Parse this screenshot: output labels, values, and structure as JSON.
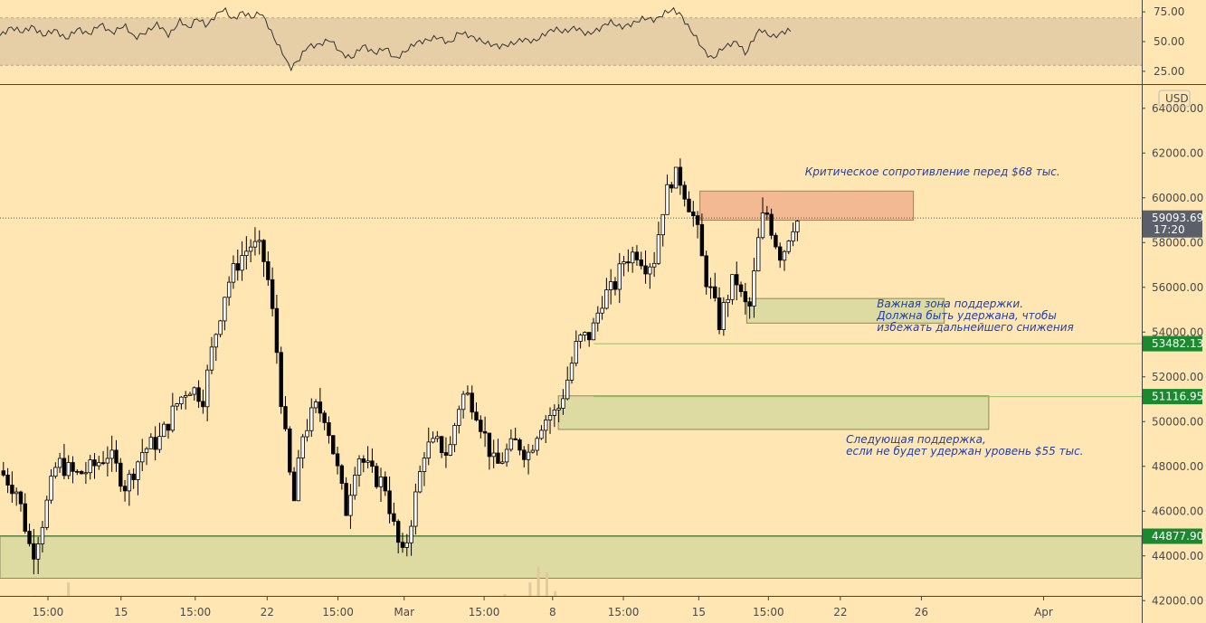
{
  "chart_data": {
    "type": "candlestick",
    "instrument_currency": "USD",
    "colors": {
      "background": "#ffe6b3",
      "candle_up": "#ffffff",
      "candle_down": "#000000",
      "rsi_band": "#e6cfa6",
      "resistance_zone": "#f2b48f",
      "support_zone": "#d9d8a0",
      "support_line": "#8fbf6a",
      "label_green": "#1b8a2e",
      "label_dark": "#5b5f6a",
      "annotation_text": "#1f3fae"
    },
    "price_axis": {
      "ylim": [
        41000,
        65000
      ],
      "ticks": [
        "64000.00",
        "62000.00",
        "60000.00",
        "58000.00",
        "56000.00",
        "54000.00",
        "52000.00",
        "50000.00",
        "48000.00",
        "46000.00",
        "44000.00",
        "42000.00"
      ],
      "tick_values": [
        64000,
        62000,
        60000,
        58000,
        56000,
        54000,
        52000,
        50000,
        48000,
        46000,
        44000,
        42000
      ]
    },
    "rsi_axis": {
      "ylim": [
        15,
        85
      ],
      "ticks": [
        "75.00",
        "50.00",
        "25.00"
      ],
      "tick_values": [
        75,
        50,
        25
      ],
      "band": [
        30,
        70
      ]
    },
    "time_axis": {
      "xlim": [
        0,
        100
      ],
      "labels": [
        "15:00",
        "15",
        "15:00",
        "22",
        "15:00",
        "Mar",
        "15:00",
        "8",
        "15:00",
        "15",
        "15:00",
        "22",
        "26",
        "Apr"
      ],
      "positions": [
        4.2,
        10.6,
        17.1,
        23.4,
        29.6,
        35.4,
        42.4,
        48.4,
        54.6,
        61.2,
        67.3,
        73.6,
        80.7,
        91.4
      ]
    },
    "current_price": {
      "label": "59093.69",
      "value": 59093.69,
      "time_label": "17:20"
    },
    "level_labels": [
      {
        "label": "53482.13",
        "value": 53482.13
      },
      {
        "label": "51116.95",
        "value": 51116.95
      },
      {
        "label": "44877.90",
        "value": 44877.9
      }
    ],
    "zones": [
      {
        "kind": "resistance",
        "x": [
          61.3,
          80.0
        ],
        "price": [
          59000,
          60300
        ]
      },
      {
        "kind": "support",
        "x": [
          65.4,
          82.7
        ],
        "price": [
          54400,
          55500
        ]
      },
      {
        "kind": "support",
        "x": [
          48.9,
          86.6
        ],
        "price": [
          49650,
          51150
        ]
      },
      {
        "kind": "support",
        "x": [
          0,
          100
        ],
        "price": [
          43000,
          44900
        ]
      }
    ],
    "annotations": [
      {
        "lines": [
          "Критическое сопротивление перед $68 тыс."
        ],
        "x": 70.5,
        "price": 61000
      },
      {
        "lines": [
          "Важная зона поддержки.",
          "Должна быть удержана, чтобы",
          "избежать дальнейшего снижения"
        ],
        "x": 76.8,
        "price": 55100
      },
      {
        "lines": [
          "Следующая поддержка,",
          "если не будет удержан уровень $55 тыс."
        ],
        "x": 74.1,
        "price": 49050
      }
    ],
    "price_path": [
      [
        0,
        47800
      ],
      [
        1.5,
        46900
      ],
      [
        2.8,
        44000
      ],
      [
        3.6,
        45300
      ],
      [
        5,
        48200
      ],
      [
        6.6,
        47600
      ],
      [
        8,
        47900
      ],
      [
        9.5,
        48600
      ],
      [
        11,
        47100
      ],
      [
        12.5,
        48700
      ],
      [
        14,
        49200
      ],
      [
        15.5,
        50800
      ],
      [
        16.5,
        51600
      ],
      [
        17.8,
        51100
      ],
      [
        18.6,
        53300
      ],
      [
        19.8,
        56000
      ],
      [
        21,
        57300
      ],
      [
        22,
        57900
      ],
      [
        22.9,
        57600
      ],
      [
        23.4,
        56600
      ],
      [
        24.1,
        53900
      ],
      [
        24.8,
        50100
      ],
      [
        25.7,
        46200
      ],
      [
        26.5,
        49400
      ],
      [
        27.6,
        50600
      ],
      [
        28.5,
        50300
      ],
      [
        29.4,
        48200
      ],
      [
        30.3,
        46000
      ],
      [
        31.3,
        48600
      ],
      [
        32.6,
        47600
      ],
      [
        33.7,
        47200
      ],
      [
        34.7,
        44800
      ],
      [
        35.3,
        43900
      ],
      [
        36.2,
        46100
      ],
      [
        37.2,
        48800
      ],
      [
        38.4,
        49000
      ],
      [
        39.3,
        48500
      ],
      [
        40.1,
        50600
      ],
      [
        40.7,
        51300
      ],
      [
        41.6,
        50700
      ],
      [
        42.5,
        49300
      ],
      [
        43.4,
        47900
      ],
      [
        44.3,
        48600
      ],
      [
        45.3,
        49100
      ],
      [
        46.2,
        48500
      ],
      [
        47.3,
        49900
      ],
      [
        48.1,
        50300
      ],
      [
        48.8,
        50400
      ],
      [
        49.6,
        51700
      ],
      [
        50.6,
        53600
      ],
      [
        51.8,
        53900
      ],
      [
        52.8,
        55600
      ],
      [
        53.7,
        55900
      ],
      [
        54.7,
        57300
      ],
      [
        55.8,
        57600
      ],
      [
        56.6,
        57000
      ],
      [
        57.3,
        57300
      ],
      [
        58.1,
        59700
      ],
      [
        58.9,
        61000
      ],
      [
        59.6,
        60800
      ],
      [
        60.3,
        59800
      ],
      [
        61,
        58700
      ],
      [
        61.7,
        56600
      ],
      [
        62.3,
        55700
      ],
      [
        63,
        54400
      ],
      [
        63.7,
        55600
      ],
      [
        64.4,
        56500
      ],
      [
        65.1,
        55200
      ],
      [
        65.7,
        55100
      ],
      [
        66.4,
        58000
      ],
      [
        67,
        59600
      ],
      [
        67.7,
        58400
      ],
      [
        68.3,
        57500
      ],
      [
        68.8,
        57800
      ],
      [
        69.3,
        58800
      ],
      [
        70,
        59000
      ]
    ],
    "rsi_path": [
      [
        0,
        55
      ],
      [
        1,
        62
      ],
      [
        2,
        58
      ],
      [
        2.8,
        63
      ],
      [
        3.8,
        55
      ],
      [
        4.8,
        60
      ],
      [
        5.8,
        52
      ],
      [
        6.8,
        61
      ],
      [
        7.8,
        56
      ],
      [
        8.8,
        65
      ],
      [
        9.8,
        57
      ],
      [
        10.9,
        64
      ],
      [
        11.8,
        53
      ],
      [
        12.8,
        58
      ],
      [
        13.8,
        65
      ],
      [
        14.8,
        55
      ],
      [
        15.8,
        68
      ],
      [
        16.5,
        61
      ],
      [
        17.3,
        70
      ],
      [
        18.1,
        63
      ],
      [
        18.8,
        71
      ],
      [
        19.6,
        78
      ],
      [
        20.4,
        68
      ],
      [
        21.2,
        75
      ],
      [
        22.1,
        70
      ],
      [
        22.8,
        75
      ],
      [
        23.3,
        67
      ],
      [
        24,
        53
      ],
      [
        24.8,
        40
      ],
      [
        25.4,
        27
      ],
      [
        26.2,
        35
      ],
      [
        26.9,
        46
      ],
      [
        27.9,
        47
      ],
      [
        28.9,
        52
      ],
      [
        29.9,
        40
      ],
      [
        30.8,
        36
      ],
      [
        31.8,
        47
      ],
      [
        32.8,
        40
      ],
      [
        33.8,
        45
      ],
      [
        34.6,
        35
      ],
      [
        35.4,
        41
      ],
      [
        36.4,
        49
      ],
      [
        37.4,
        51
      ],
      [
        38.4,
        54
      ],
      [
        39.4,
        48
      ],
      [
        40.2,
        58
      ],
      [
        40.8,
        56
      ],
      [
        41.8,
        52
      ],
      [
        42.8,
        48
      ],
      [
        43.8,
        46
      ],
      [
        44.8,
        48
      ],
      [
        45.8,
        52
      ],
      [
        46.8,
        50
      ],
      [
        47.8,
        57
      ],
      [
        48.6,
        61
      ],
      [
        49.4,
        58
      ],
      [
        50.4,
        62
      ],
      [
        51.4,
        56
      ],
      [
        52.4,
        60
      ],
      [
        53.4,
        67
      ],
      [
        54.4,
        62
      ],
      [
        55.4,
        65
      ],
      [
        56.4,
        70
      ],
      [
        57.4,
        68
      ],
      [
        58.2,
        74
      ],
      [
        58.9,
        77
      ],
      [
        59.6,
        73
      ],
      [
        60.3,
        62
      ],
      [
        61,
        53
      ],
      [
        61.6,
        43
      ],
      [
        62.4,
        35
      ],
      [
        63.2,
        44
      ],
      [
        64,
        48
      ],
      [
        64.6,
        50
      ],
      [
        65.3,
        39
      ],
      [
        65.9,
        51
      ],
      [
        66.6,
        61
      ],
      [
        67.2,
        56
      ],
      [
        67.8,
        54
      ],
      [
        68.4,
        57
      ],
      [
        69.1,
        60
      ],
      [
        69.4,
        57
      ]
    ],
    "volume": [
      17,
      15,
      13,
      12,
      19,
      14,
      16,
      9,
      28,
      15,
      10,
      13,
      11,
      16,
      8,
      13,
      12,
      16,
      9,
      14,
      15,
      11,
      12,
      17,
      10,
      14,
      9,
      13,
      11,
      15,
      12,
      18,
      10,
      12,
      14,
      9,
      11,
      16,
      13,
      10,
      12,
      18,
      9,
      14,
      11,
      15,
      13,
      10,
      12,
      17,
      14,
      11,
      9,
      13,
      12,
      16,
      10,
      14,
      18,
      12,
      20,
      11,
      13,
      28,
      39,
      35,
      22,
      17,
      12,
      14,
      10,
      15,
      13,
      11,
      14,
      16,
      10,
      12,
      15,
      13,
      11,
      14,
      12,
      19,
      10,
      13,
      15,
      11,
      9,
      14,
      12,
      13,
      11,
      16,
      10,
      12,
      14,
      13,
      11,
      15
    ]
  }
}
